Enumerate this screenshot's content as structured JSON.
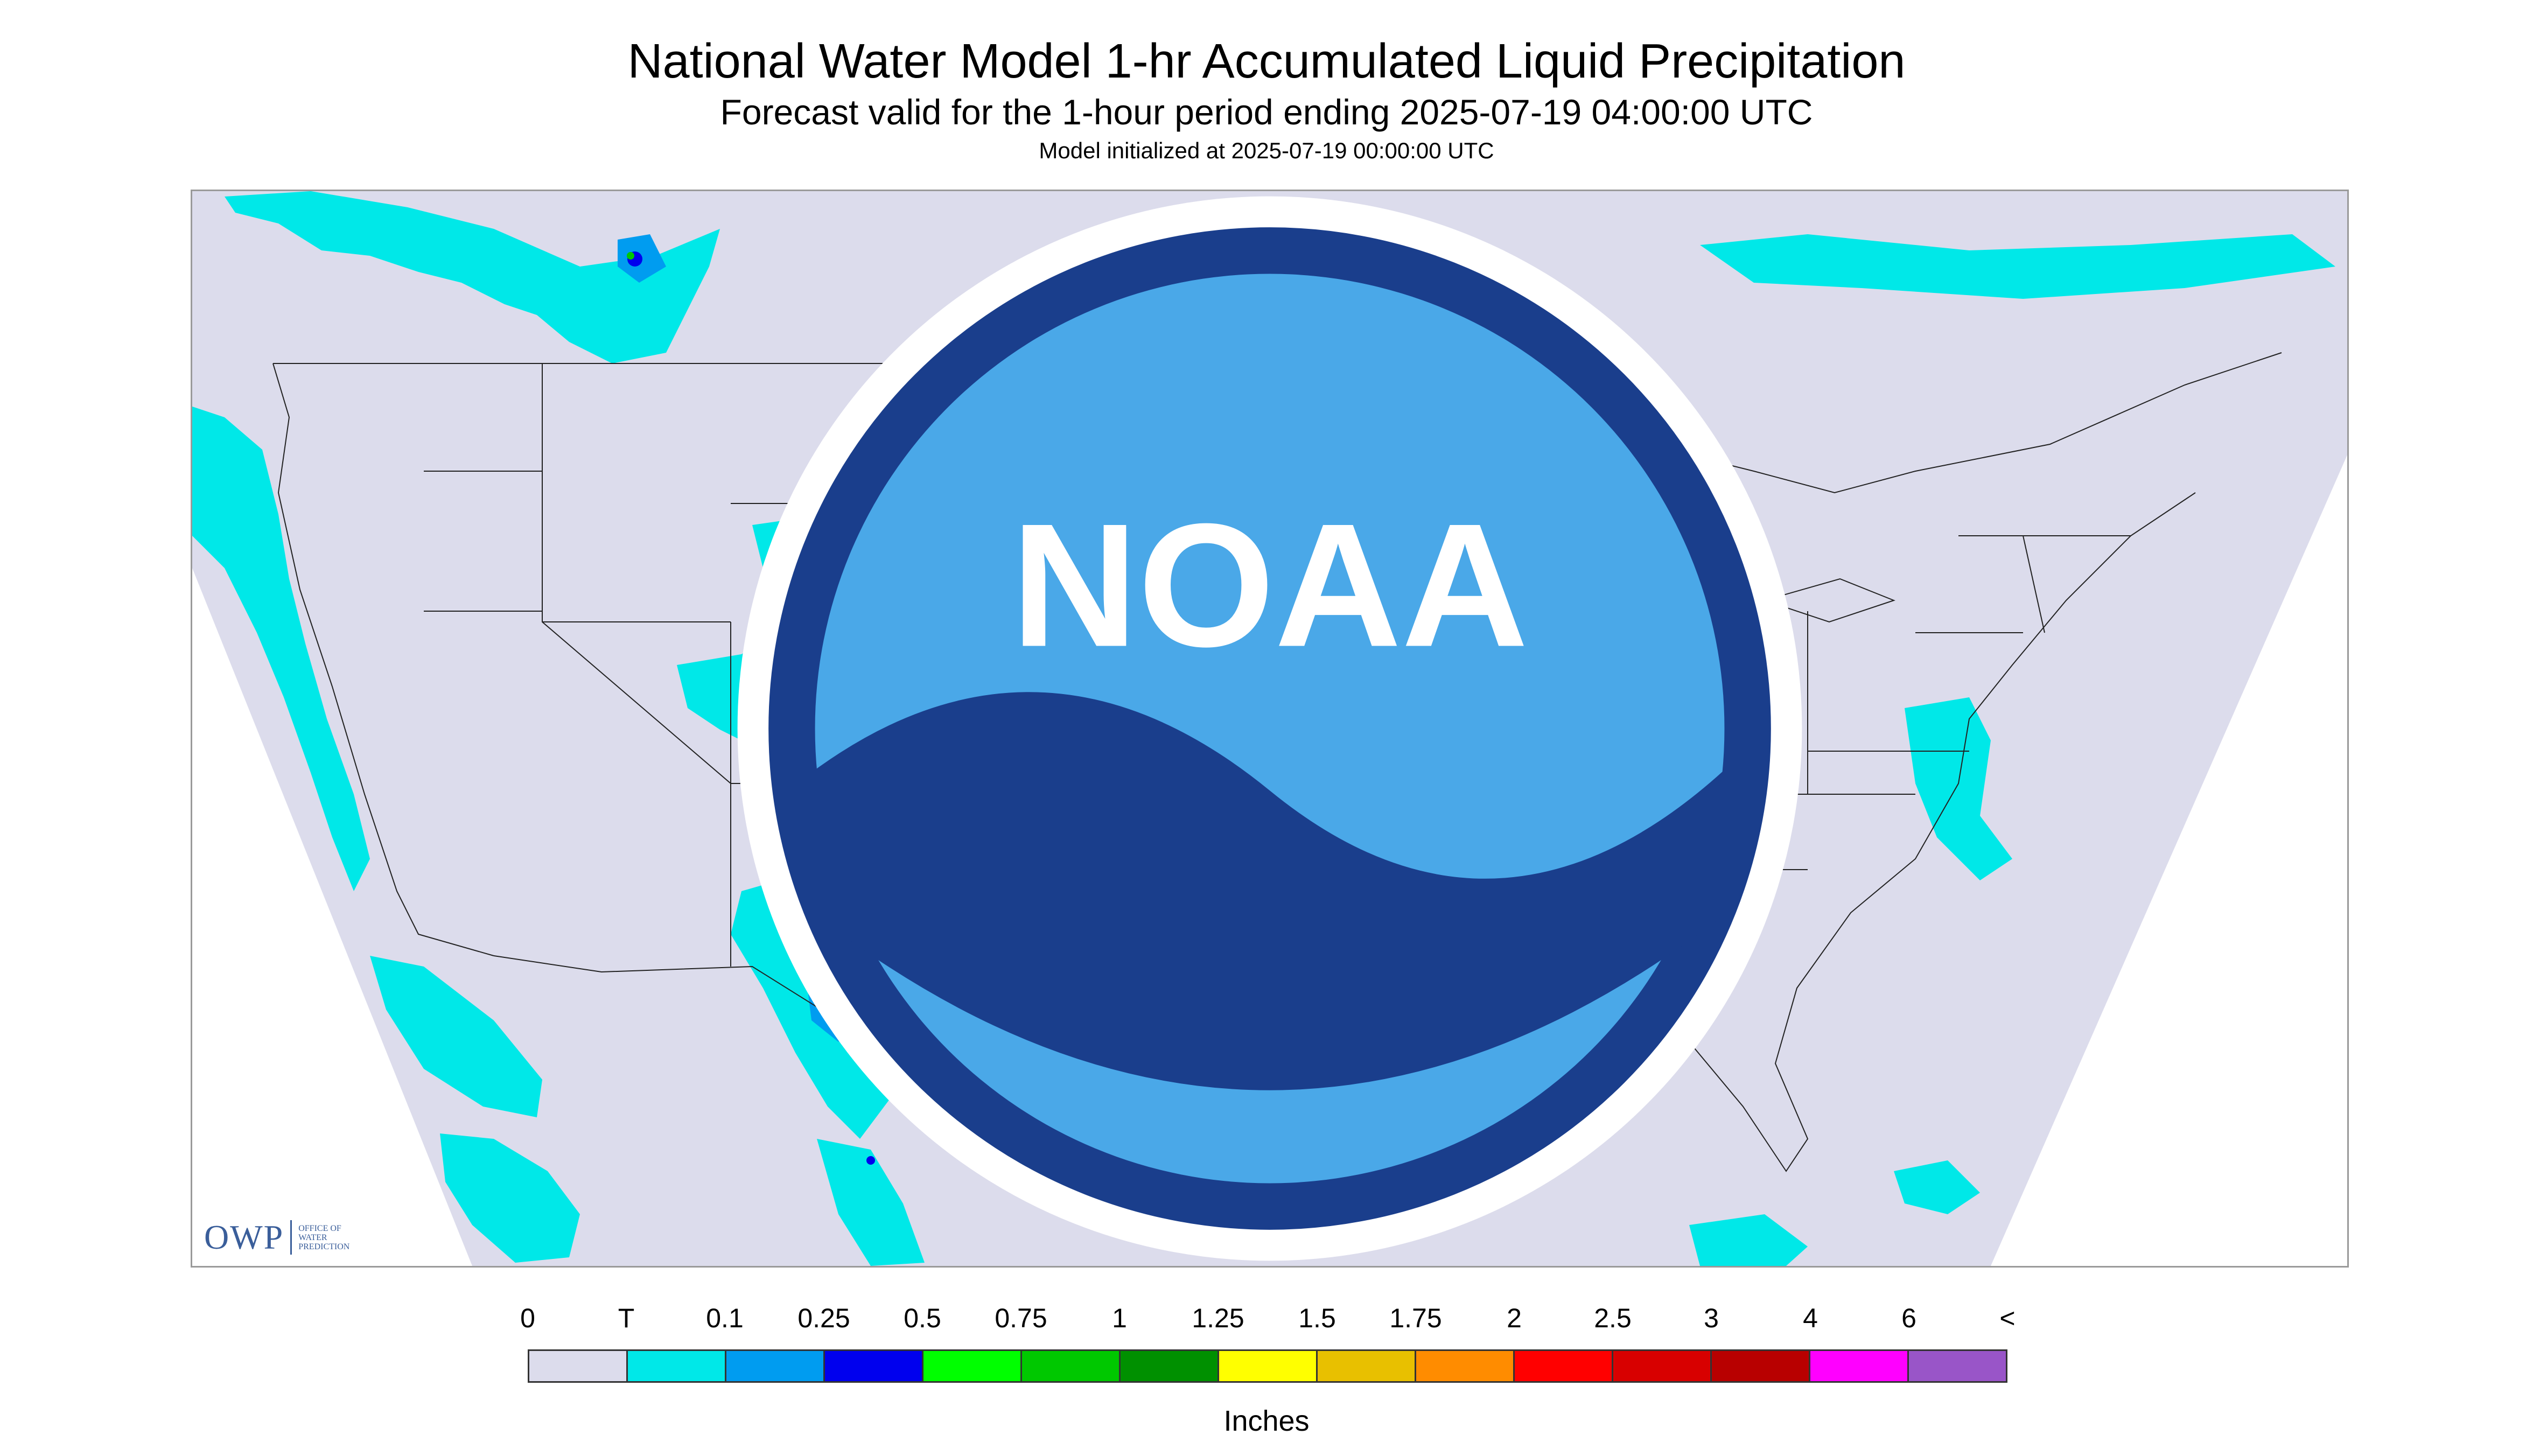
{
  "title": "National Water Model 1-hr Accumulated Liquid Precipitation",
  "subtitle": "Forecast valid for the 1-hour period ending 2025-07-19 04:00:00 UTC",
  "init_line": "Model initialized at 2025-07-19 00:00:00 UTC",
  "logos": {
    "owp_abbrev": "OWP",
    "owp_name_lines": [
      "OFFICE OF",
      "WATER",
      "PREDICTION"
    ],
    "noaa_text": "NOAA"
  },
  "legend": {
    "labels": [
      "0",
      "T",
      "0.1",
      "0.25",
      "0.5",
      "0.75",
      "1",
      "1.25",
      "1.5",
      "1.75",
      "2",
      "2.5",
      "3",
      "4",
      "6",
      "<"
    ],
    "colors": [
      "#dcdcec",
      "#00e8e8",
      "#009cf0",
      "#0000ee",
      "#00ff00",
      "#00c800",
      "#009000",
      "#ffff00",
      "#e8c000",
      "#ff8c00",
      "#ff0000",
      "#d80000",
      "#b80000",
      "#ff00ff",
      "#9955c8"
    ],
    "units": "Inches"
  },
  "colors": {
    "domain_fill": "#dcdcec",
    "outside_fill": "#ffffff",
    "trace": "#00e8e8",
    "light": "#009cf0",
    "moderate": "#0000ee",
    "heavy": "#00c800",
    "border_line": "#222222"
  }
}
